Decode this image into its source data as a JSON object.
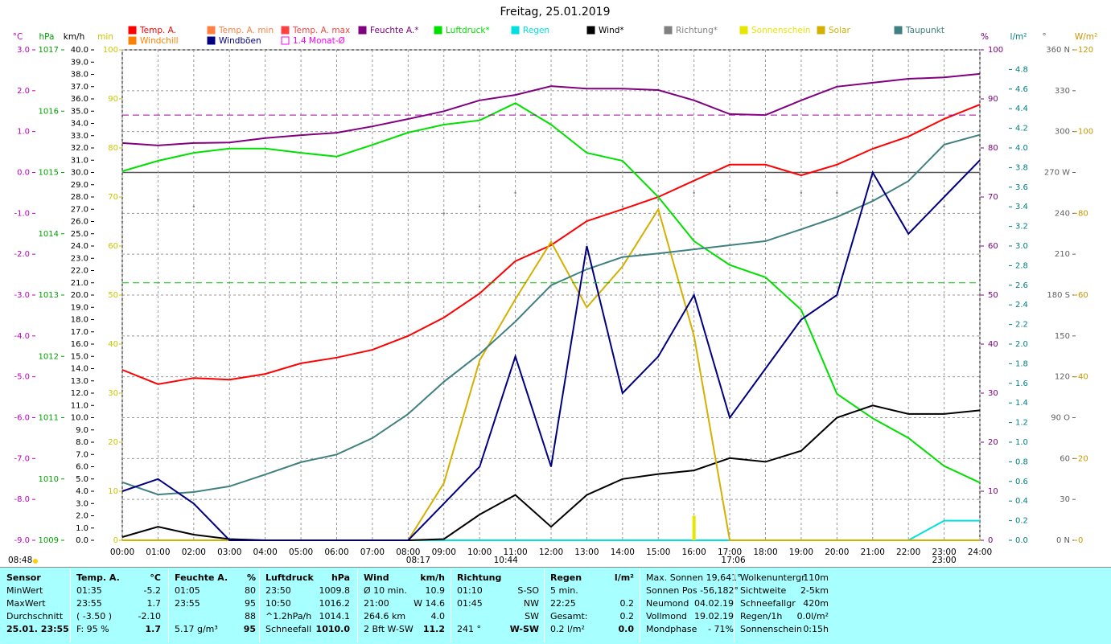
{
  "chart_data": {
    "type": "line",
    "title": "Freitag, 25.01.2019",
    "grid": true,
    "x": [
      0,
      1,
      2,
      3,
      4,
      5,
      6,
      7,
      8,
      9,
      10,
      11,
      12,
      13,
      14,
      15,
      16,
      17,
      18,
      19,
      20,
      21,
      22,
      23,
      24
    ],
    "xlim": [
      0,
      24
    ],
    "xticks": [
      {
        "value": 0,
        "label": "00:00"
      },
      {
        "value": 1,
        "label": "01:00"
      },
      {
        "value": 2,
        "label": "02:00"
      },
      {
        "value": 3,
        "label": "03:00"
      },
      {
        "value": 4,
        "label": "04:00"
      },
      {
        "value": 5,
        "label": "05:00"
      },
      {
        "value": 6,
        "label": "06:00"
      },
      {
        "value": 7,
        "label": "07:00"
      },
      {
        "value": 8,
        "label": "08:00"
      },
      {
        "value": 9,
        "label": "09:00"
      },
      {
        "value": 10,
        "label": "10:00"
      },
      {
        "value": 11,
        "label": "11:00"
      },
      {
        "value": 12,
        "label": "12:00"
      },
      {
        "value": 13,
        "label": "13:00"
      },
      {
        "value": 14,
        "label": "14:00"
      },
      {
        "value": 15,
        "label": "15:00"
      },
      {
        "value": 16,
        "label": "16:00"
      },
      {
        "value": 17,
        "label": "17:00"
      },
      {
        "value": 18,
        "label": "18:00"
      },
      {
        "value": 19,
        "label": "19:00"
      },
      {
        "value": 20,
        "label": "20:00"
      },
      {
        "value": 21,
        "label": "21:00"
      },
      {
        "value": 22,
        "label": "22:00"
      },
      {
        "value": 23,
        "label": "23:00"
      },
      {
        "value": 24,
        "label": "24:00"
      }
    ],
    "left_annotation": "08:48",
    "annotations": [
      {
        "x": 8.283,
        "label": "08:17"
      },
      {
        "x": 10.733,
        "label": "10:44"
      },
      {
        "x": 17.1,
        "label": "17:06"
      },
      {
        "x": 23,
        "label": "23:00"
      }
    ],
    "axes": {
      "temp": {
        "label": "°C",
        "color": "#c000c0",
        "lim": [
          -9,
          3
        ],
        "ticks": [
          {
            "value": -9,
            "label": "-9.0"
          },
          {
            "value": -8,
            "label": "-8.0"
          },
          {
            "value": -7,
            "label": "-7.0"
          },
          {
            "value": -6,
            "label": "-6.0"
          },
          {
            "value": -5,
            "label": "-5.0"
          },
          {
            "value": -4,
            "label": "-4.0"
          },
          {
            "value": -3,
            "label": "-3.0"
          },
          {
            "value": -2,
            "label": "-2.0"
          },
          {
            "value": -1,
            "label": "-1.0"
          },
          {
            "value": 0,
            "label": "0.0"
          },
          {
            "value": 1,
            "label": "1.0"
          },
          {
            "value": 2,
            "label": "2.0"
          },
          {
            "value": 3,
            "label": "3.0"
          }
        ]
      },
      "hpa": {
        "label": "hPa",
        "color": "#00a000",
        "lim": [
          1009,
          1017
        ],
        "ticks": [
          1009,
          1010,
          1011,
          1012,
          1013,
          1014,
          1015,
          1016,
          1017
        ]
      },
      "kmh": {
        "label": "km/h",
        "color": "#000000",
        "lim": [
          0,
          40
        ],
        "ticks": [
          {
            "value": 0,
            "label": "0.0"
          },
          {
            "value": 1,
            "label": "1.0"
          },
          {
            "value": 2,
            "label": "2.0"
          },
          {
            "value": 3,
            "label": "3.0"
          },
          {
            "value": 4,
            "label": "4.0"
          },
          {
            "value": 5,
            "label": "5.0"
          },
          {
            "value": 6,
            "label": "6.0"
          },
          {
            "value": 7,
            "label": "7.0"
          },
          {
            "value": 8,
            "label": "8.0"
          },
          {
            "value": 9,
            "label": "9.0"
          },
          {
            "value": 10,
            "label": "10.0"
          },
          {
            "value": 11,
            "label": "11.0"
          },
          {
            "value": 12,
            "label": "12.0"
          },
          {
            "value": 13,
            "label": "13.0"
          },
          {
            "value": 14,
            "label": "14.0"
          },
          {
            "value": 15,
            "label": "15.0"
          },
          {
            "value": 16,
            "label": "16.0"
          },
          {
            "value": 17,
            "label": "17.0"
          },
          {
            "value": 18,
            "label": "18.0"
          },
          {
            "value": 19,
            "label": "19.0"
          },
          {
            "value": 20,
            "label": "20.0"
          },
          {
            "value": 21,
            "label": "21.0"
          },
          {
            "value": 22,
            "label": "22.0"
          },
          {
            "value": 23,
            "label": "23.0"
          },
          {
            "value": 24,
            "label": "24.0"
          },
          {
            "value": 25,
            "label": "25.0"
          },
          {
            "value": 26,
            "label": "26.0"
          },
          {
            "value": 27,
            "label": "27.0"
          },
          {
            "value": 28,
            "label": "28.0"
          },
          {
            "value": 29,
            "label": "29.0"
          },
          {
            "value": 30,
            "label": "30.0"
          },
          {
            "value": 31,
            "label": "31.0"
          },
          {
            "value": 32,
            "label": "32.0"
          },
          {
            "value": 33,
            "label": "33.0"
          },
          {
            "value": 34,
            "label": "34.0"
          },
          {
            "value": 35,
            "label": "35.0"
          },
          {
            "value": 36,
            "label": "36.0"
          },
          {
            "value": 37,
            "label": "37.0"
          },
          {
            "value": 38,
            "label": "38.0"
          },
          {
            "value": 39,
            "label": "39.0"
          },
          {
            "value": 40,
            "label": "40.0"
          }
        ]
      },
      "min": {
        "label": "min",
        "color": "#c8c800",
        "lim": [
          0,
          100
        ],
        "ticks": [
          0,
          10,
          20,
          30,
          40,
          50,
          60,
          70,
          80,
          90,
          100
        ]
      },
      "pct": {
        "label": "%",
        "color": "#800080",
        "lim": [
          0,
          100
        ],
        "ticks": [
          0,
          10,
          20,
          30,
          40,
          50,
          60,
          70,
          80,
          90,
          100
        ]
      },
      "rain": {
        "label": "l/m²",
        "color": "#008080",
        "lim": [
          0,
          5
        ],
        "ticks": [
          {
            "value": 0,
            "label": "0.0"
          },
          0.2,
          0.4,
          0.6,
          0.8,
          {
            "value": 1,
            "label": "1.0"
          },
          1.2,
          1.4,
          1.6,
          1.8,
          {
            "value": 2,
            "label": "2.0"
          },
          2.2,
          2.4,
          2.6,
          2.8,
          {
            "value": 3,
            "label": "3.0"
          },
          3.2,
          3.4,
          3.6,
          3.8,
          {
            "value": 4,
            "label": "4.0"
          },
          4.2,
          4.4,
          4.6,
          4.8
        ]
      },
      "dir": {
        "label": "°",
        "color": "#606060",
        "lim": [
          0,
          360
        ],
        "ticks": [
          {
            "value": 0,
            "label": "0 N"
          },
          30,
          60,
          {
            "value": 90,
            "label": "90 O"
          },
          120,
          150,
          {
            "value": 180,
            "label": "180 S"
          },
          210,
          240,
          {
            "value": 270,
            "label": "270 W"
          },
          300,
          330,
          {
            "value": 360,
            "label": "360 N"
          }
        ]
      },
      "solar": {
        "label": "W/m²",
        "color": "#c89600",
        "lim": [
          0,
          120
        ],
        "ticks": [
          0,
          20,
          40,
          60,
          80,
          100,
          120
        ]
      }
    },
    "series": [
      {
        "name": "Temp. A.",
        "color": "#ff0000",
        "axis": "temp",
        "values": [
          -4.83,
          -5.18,
          -5.03,
          -5.07,
          -4.93,
          -4.67,
          -4.53,
          -4.34,
          -4.0,
          -3.55,
          -2.96,
          -2.17,
          -1.78,
          -1.19,
          -0.9,
          -0.6,
          -0.2,
          0.19,
          0.19,
          -0.07,
          0.19,
          0.58,
          0.88,
          1.31,
          1.66
        ]
      },
      {
        "name": "Temp. A. min",
        "color": "#ff8040"
      },
      {
        "name": "Temp. A. max",
        "color": "#ff4040"
      },
      {
        "name": "Feuchte A.*",
        "color": "#800080",
        "axis": "pct",
        "values": [
          81.0,
          80.5,
          81.0,
          81.1,
          82.0,
          82.6,
          83.1,
          84.4,
          85.9,
          87.5,
          89.7,
          90.8,
          92.6,
          92.1,
          92.1,
          91.8,
          89.7,
          86.9,
          86.7,
          89.7,
          92.5,
          93.3,
          94.1,
          94.4,
          95.1
        ]
      },
      {
        "name": "Luftdruck*",
        "color": "#00e000",
        "axis": "hpa",
        "values": [
          1015.02,
          1015.19,
          1015.32,
          1015.39,
          1015.39,
          1015.32,
          1015.26,
          1015.45,
          1015.65,
          1015.78,
          1015.85,
          1016.13,
          1015.78,
          1015.32,
          1015.19,
          1014.6,
          1013.88,
          1013.49,
          1013.29,
          1012.76,
          1011.39,
          1010.99,
          1010.67,
          1010.21,
          1009.94
        ]
      },
      {
        "name": "Regen",
        "color": "#00e0e0",
        "axis": "rain",
        "values": [
          0,
          0,
          0,
          0,
          0,
          0,
          0,
          0,
          0,
          0,
          0,
          0,
          0,
          0,
          0,
          0,
          0,
          0,
          0,
          0,
          0,
          0,
          0,
          0.2,
          0.2
        ]
      },
      {
        "name": "Wind*",
        "color": "#000000",
        "axis": "kmh",
        "values": [
          0.26,
          1.1,
          0.46,
          0.1,
          0,
          0,
          0,
          0,
          0,
          0.1,
          2.1,
          3.7,
          1.1,
          3.7,
          5.0,
          5.4,
          5.7,
          6.7,
          6.4,
          7.3,
          10.0,
          11.0,
          10.3,
          10.3,
          10.6
        ]
      },
      {
        "name": "Richtung*",
        "color": "#808080",
        "axis": "dir",
        "style": "dots",
        "values": [
          240,
          250,
          245,
          null,
          null,
          null,
          null,
          null,
          null,
          240,
          245,
          255,
          250,
          250,
          245,
          250,
          255,
          245,
          250,
          255,
          255,
          250,
          250,
          245,
          250
        ]
      },
      {
        "name": "Sonnenschein",
        "color": "#e6e600",
        "axis": "min",
        "style": "bars",
        "values": [
          0,
          0,
          0,
          0,
          0,
          0,
          0,
          0,
          0,
          0,
          0,
          0,
          0,
          0,
          0,
          0,
          5,
          0,
          0,
          0,
          0,
          0,
          0,
          0,
          0
        ]
      },
      {
        "name": "Solar",
        "color": "#d4b000",
        "axis": "solar",
        "values": [
          0,
          0,
          0,
          0,
          0,
          0,
          0,
          0,
          0,
          14,
          44,
          59,
          73,
          57,
          67,
          81,
          50,
          0,
          0,
          0,
          0,
          0,
          0,
          0,
          0
        ]
      },
      {
        "name": "Taupunkt",
        "color": "#408080",
        "axis": "temp",
        "values": [
          -7.58,
          -7.88,
          -7.82,
          -7.68,
          -7.39,
          -7.09,
          -6.9,
          -6.5,
          -5.91,
          -5.12,
          -4.44,
          -3.65,
          -2.76,
          -2.37,
          -2.07,
          -1.98,
          -1.88,
          -1.78,
          -1.68,
          -1.39,
          -1.09,
          -0.7,
          -0.21,
          0.68,
          0.92
        ]
      },
      {
        "name": "Windchill",
        "color": "#ff8000"
      },
      {
        "name": "Windböen",
        "color": "#000080",
        "axis": "kmh",
        "values": [
          4,
          5,
          3,
          0,
          0,
          0,
          0,
          0,
          0,
          3,
          6,
          15,
          6,
          24,
          12,
          15,
          20,
          10,
          14,
          18,
          20,
          30,
          25,
          28,
          31
        ]
      },
      {
        "name": "1.4 Monat-Ø",
        "color": "#ff00ff",
        "legend_marker": "hollow",
        "references": [
          {
            "axis": "pct",
            "value": 86.7,
            "color": "#a000a0"
          },
          {
            "axis": "hpa",
            "value": 1013.2,
            "color": "#00c000"
          }
        ]
      }
    ],
    "stats": [
      {
        "header": {
          "left": "Sensor"
        },
        "rows": [
          {
            "left": "MinWert"
          },
          {
            "left": "MaxWert"
          },
          {
            "left": "Durchschnitt"
          },
          {
            "left": "25.01. 23:55"
          }
        ]
      },
      {
        "header": {
          "left": "Temp. A.",
          "right": "°C"
        },
        "rows": [
          {
            "left": "01:35",
            "right": "-5.2"
          },
          {
            "left": "23:55",
            "right": "1.7"
          },
          {
            "left": "( -3.50 )",
            "right": "-2.10"
          },
          {
            "left": "F: 95 %",
            "right": "1.7"
          }
        ]
      },
      {
        "header": {
          "left": "Feuchte A.",
          "right": "%"
        },
        "rows": [
          {
            "left": "01:05",
            "right": "80"
          },
          {
            "left": "23:55",
            "right": "95"
          },
          {
            "right": "88"
          },
          {
            "left": "5.17 g/m³",
            "right": "95"
          }
        ]
      },
      {
        "header": {
          "left": "Luftdruck",
          "right": "hPa"
        },
        "rows": [
          {
            "left": "23:50",
            "right": "1009.8"
          },
          {
            "left": "10:50",
            "right": "1016.2"
          },
          {
            "left": "^1.2hPa/h",
            "right": "1014.1"
          },
          {
            "left": "Schneefall",
            "right": "1010.0"
          }
        ]
      },
      {
        "header": {
          "left": "Wind",
          "right": "km/h"
        },
        "rows": [
          {
            "left": "Ø 10 min.",
            "right": "10.9"
          },
          {
            "left": "21:00",
            "right": "W 14.6"
          },
          {
            "left": "264.6 km",
            "right": "4.0"
          },
          {
            "left": "2 Bft W-SW",
            "right": "11.2"
          }
        ]
      },
      {
        "header": {
          "left": "Richtung"
        },
        "rows": [
          {
            "left": "01:10",
            "right": "S-SO"
          },
          {
            "left": "01:45",
            "right": "NW"
          },
          {
            "right": "SW"
          },
          {
            "left": "241 °",
            "right": "W-SW"
          }
        ]
      },
      {
        "header": {
          "left": "Regen",
          "right": "l/m²"
        },
        "rows": [
          {
            "left": "5 min."
          },
          {
            "left": "22:25",
            "right": "0.2"
          },
          {
            "left": "Gesamt:",
            "right": "0.2"
          },
          {
            "left": "0.2 l/m²",
            "right": "0.0"
          }
        ]
      },
      {
        "rows": [
          {
            "left": "Max. Sonnen 19,641°"
          },
          {
            "left": "Sonnen Pos -56,182°"
          },
          {
            "left": "Neumond",
            "right": "04.02.19"
          },
          {
            "left": "Vollmond",
            "right": "19.02.19"
          },
          {
            "left": "Mondphase",
            "right": "- 71%"
          }
        ]
      },
      {
        "rows": [
          {
            "left": "Wolkenuntergr",
            "right": "110m"
          },
          {
            "left": "Sichtweite",
            "right": "2-5km"
          },
          {
            "left": "Schneefallgr",
            "right": "420m"
          },
          {
            "left": "Regen/1h",
            "right": "0.0l/m²"
          },
          {
            "left": "Sonnenschein",
            "right": "0:15h"
          }
        ]
      }
    ]
  }
}
